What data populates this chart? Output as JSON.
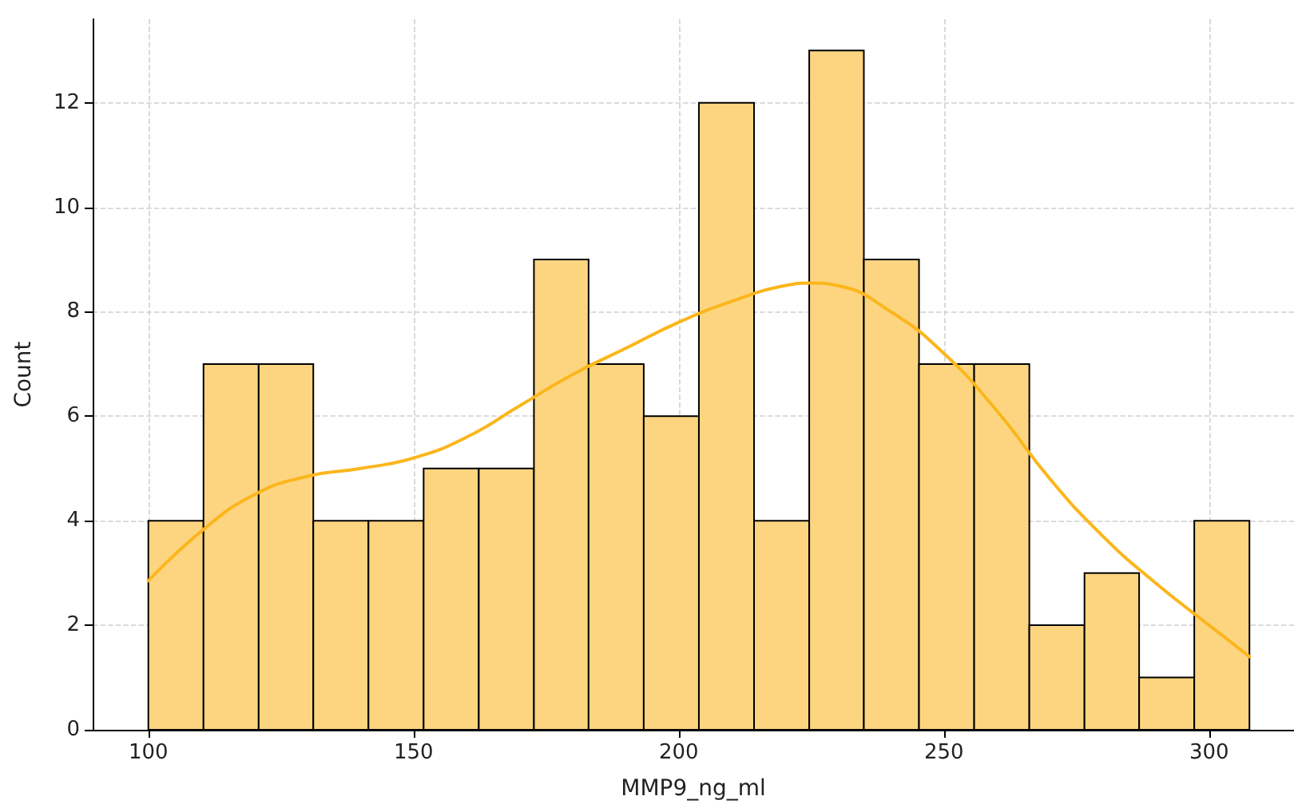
{
  "chart_data": {
    "type": "histogram",
    "xlabel": "MMP9_ng_ml",
    "ylabel": "Count",
    "bins": [
      100,
      110.4,
      120.8,
      131.1,
      141.5,
      151.9,
      162.3,
      172.7,
      183.0,
      193.4,
      203.8,
      214.2,
      224.6,
      234.9,
      245.3,
      255.7,
      266.1,
      276.5,
      286.8,
      297.2,
      307.6
    ],
    "series": [
      {
        "color": "#fdd580",
        "values": [
          4,
          7,
          7,
          4,
          4,
          5,
          5,
          9,
          7,
          6,
          12,
          4,
          13,
          9,
          7,
          7,
          2,
          3,
          1,
          4
        ]
      },
      {
        "type": "line",
        "color": "#fbb61c",
        "x": [
          100,
          110,
          120,
          130,
          140,
          150,
          160,
          170,
          180,
          190,
          200,
          210,
          220,
          225,
          230,
          240,
          250,
          260,
          270,
          280,
          290,
          300,
          307.6
        ],
        "values": [
          2.85,
          3.8,
          4.5,
          4.85,
          5.0,
          5.2,
          5.6,
          6.2,
          6.8,
          7.3,
          7.8,
          8.2,
          8.5,
          8.55,
          8.5,
          8.0,
          7.2,
          6.1,
          4.8,
          3.7,
          2.8,
          2.0,
          1.4
        ]
      }
    ],
    "xlim": [
      89.5,
      316
    ],
    "xticks": [
      100,
      150,
      200,
      250,
      300
    ],
    "ylim": [
      0,
      13.6
    ],
    "yticks": [
      0,
      2,
      4,
      6,
      8,
      10,
      12
    ],
    "grid": true,
    "line_style": "solid",
    "marker": "none"
  }
}
